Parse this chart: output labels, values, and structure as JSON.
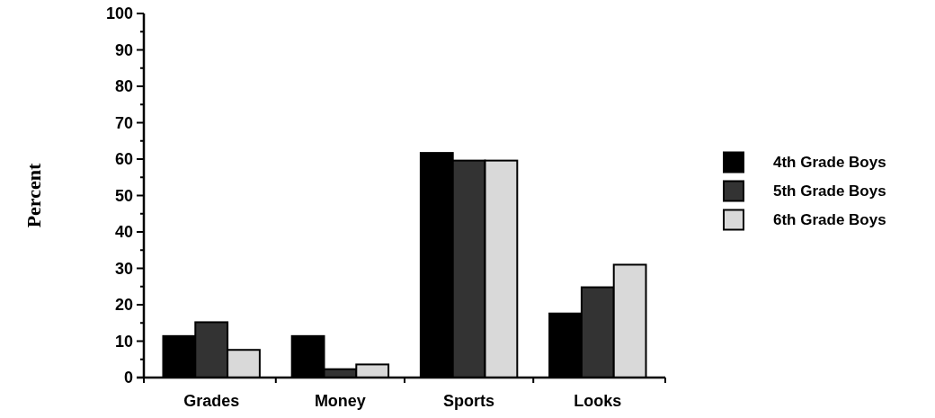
{
  "chart_data": {
    "type": "bar",
    "ylabel": "Percent",
    "categories": [
      "Grades",
      "Money",
      "Sports",
      "Looks"
    ],
    "series": [
      {
        "name": "4th Grade Boys",
        "color": "#000000",
        "values": [
          11.4,
          11.4,
          61.7,
          17.6
        ]
      },
      {
        "name": "5th Grade Boys",
        "color": "#333333",
        "values": [
          15.2,
          2.3,
          59.6,
          24.8
        ]
      },
      {
        "name": "6th Grade Boys",
        "color": "#d9d9d9",
        "values": [
          7.6,
          3.6,
          59.6,
          31.0
        ]
      }
    ],
    "ylim": [
      0,
      100
    ],
    "yticks": [
      0,
      10,
      20,
      30,
      40,
      50,
      60,
      70,
      80,
      90,
      100
    ],
    "grid": false,
    "legend": "right"
  }
}
